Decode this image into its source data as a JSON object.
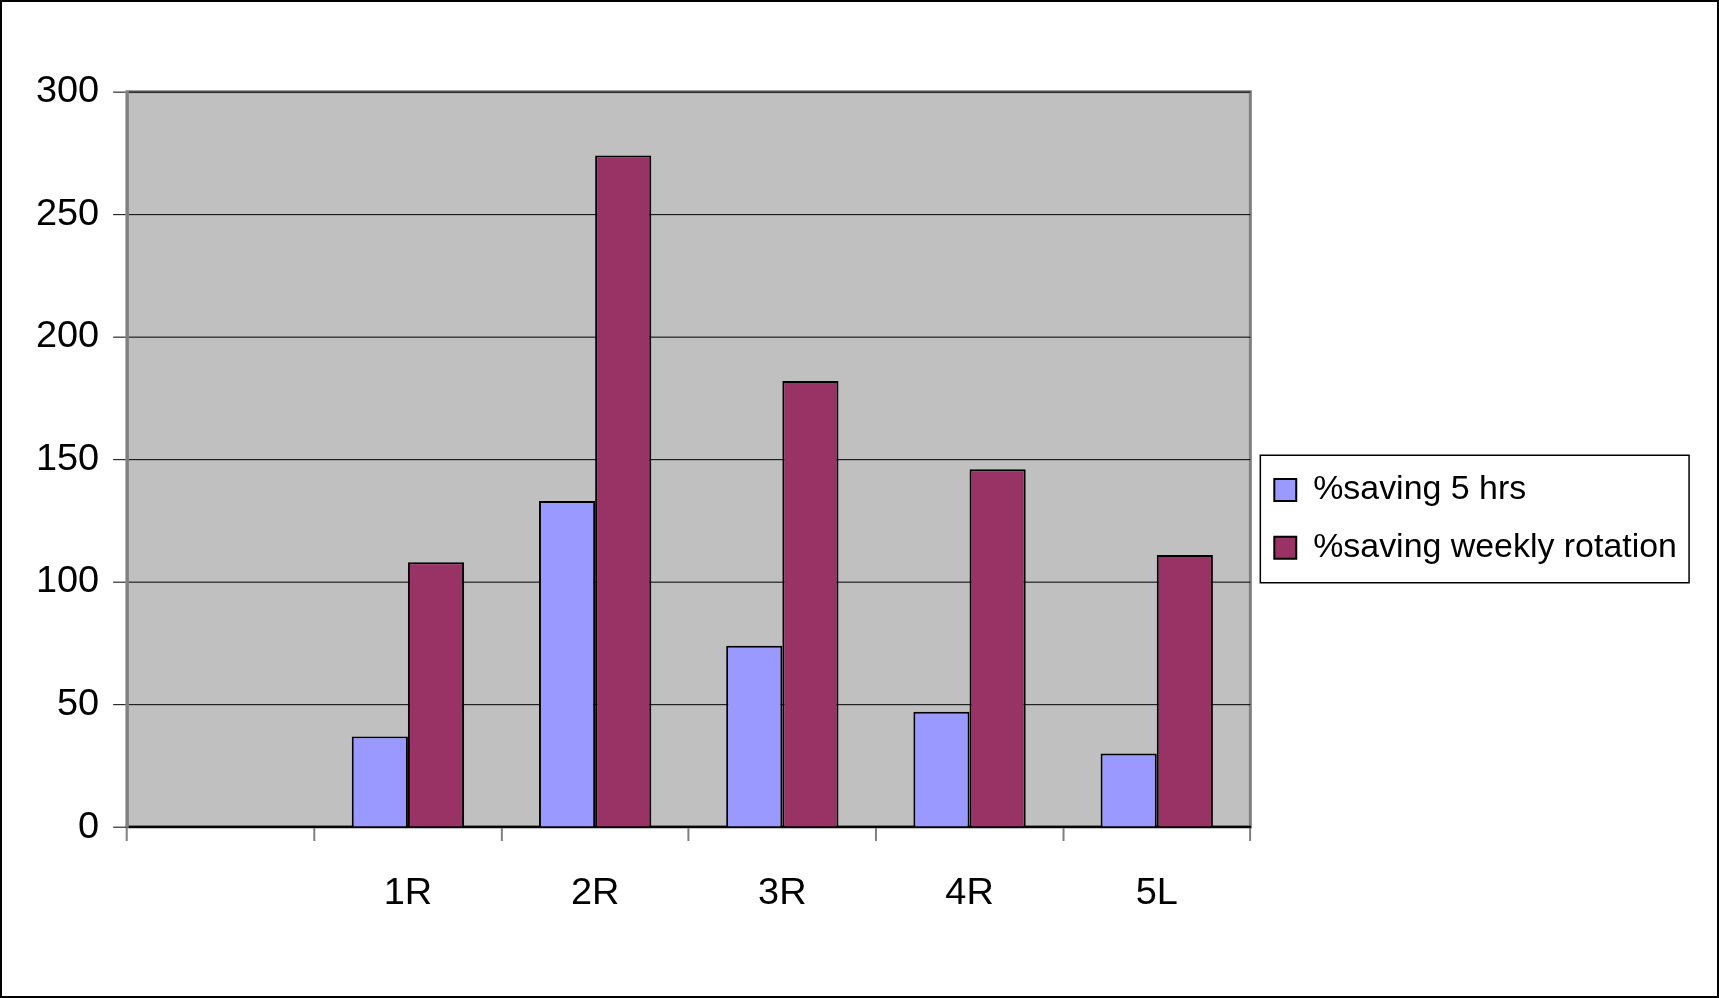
{
  "chart_data": {
    "type": "bar",
    "categories": [
      null,
      "1R",
      "2R",
      "3R",
      "4R",
      "5L"
    ],
    "series": [
      {
        "name": "%saving 5 hrs",
        "color": "#9999ff",
        "values": [
          null,
          37,
          133,
          74,
          47,
          30
        ]
      },
      {
        "name": "%saving weekly rotation",
        "color": "#993366",
        "values": [
          null,
          108,
          274,
          182,
          146,
          111
        ]
      }
    ],
    "ylim": [
      0,
      300
    ],
    "yticks": [
      0,
      50,
      100,
      150,
      200,
      250,
      300
    ],
    "grid": "y",
    "legend": "right"
  }
}
